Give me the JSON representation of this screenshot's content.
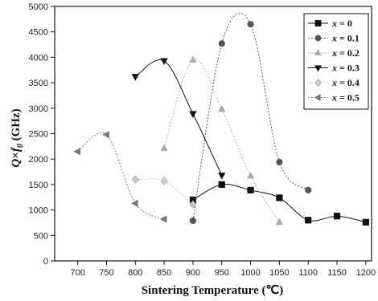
{
  "chart_data": {
    "type": "line",
    "xlabel": "Sintering Temperature (℃)",
    "ylabel_parts": [
      "Q",
      "×",
      "f",
      "0",
      " (GHz)"
    ],
    "xlim": [
      660,
      1210
    ],
    "ylim": [
      0,
      5000
    ],
    "xticks": [
      700,
      750,
      800,
      850,
      900,
      950,
      1000,
      1050,
      1100,
      1150,
      1200
    ],
    "yticks": [
      0,
      500,
      1000,
      1500,
      2000,
      2500,
      3000,
      3500,
      4000,
      4500,
      5000
    ],
    "legend_position": "top-right",
    "grid": false,
    "series": [
      {
        "name": "x = 0",
        "legend_var": "x",
        "legend_eq": " = 0",
        "marker": "square",
        "color": "#111111",
        "dash": "",
        "x": [
          900,
          950,
          1000,
          1050,
          1100,
          1150,
          1200
        ],
        "y": [
          1200,
          1500,
          1390,
          1240,
          800,
          880,
          760
        ]
      },
      {
        "name": "x = 0.1",
        "legend_var": "x",
        "legend_eq": " = 0.1",
        "marker": "circle",
        "color": "#555555",
        "dash": "2,2",
        "x": [
          900,
          950,
          1000,
          1050,
          1100
        ],
        "y": [
          790,
          4270,
          4650,
          1940,
          1390
        ]
      },
      {
        "name": "x = 0.2",
        "legend_var": "x",
        "legend_eq": " = 0.2",
        "marker": "triangle-up",
        "color": "#aaaaaa",
        "dash": "2,2",
        "x": [
          850,
          900,
          950,
          1000,
          1050
        ],
        "y": [
          2210,
          3950,
          2980,
          1670,
          760
        ]
      },
      {
        "name": "x = 0.3",
        "legend_var": "x",
        "legend_eq": " = 0.3",
        "marker": "triangle-down",
        "color": "#111111",
        "dash": "",
        "x": [
          800,
          850,
          900,
          950
        ],
        "y": [
          3620,
          3930,
          2890,
          1680
        ]
      },
      {
        "name": "x = 0.4",
        "legend_var": "x",
        "legend_eq": " = 0.4",
        "marker": "diamond",
        "color": "#cccccc",
        "dash": "2,2",
        "x": [
          800,
          850,
          900
        ],
        "y": [
          1600,
          1570,
          1110
        ]
      },
      {
        "name": "x = 0.5",
        "legend_var": "x",
        "legend_eq": " = 0.5",
        "marker": "triangle-left",
        "color": "#777777",
        "dash": "2,2",
        "x": [
          700,
          750,
          800,
          850
        ],
        "y": [
          2150,
          2480,
          1130,
          820
        ]
      }
    ]
  }
}
